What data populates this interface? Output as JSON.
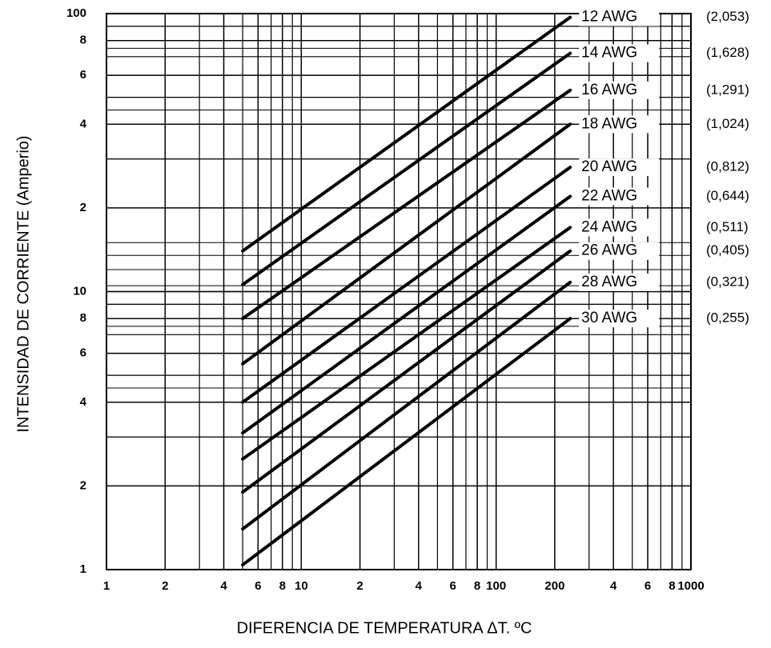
{
  "chart_data": {
    "type": "line",
    "x_label": "DIFERENCIA DE TEMPERATURA ΔT. ºC",
    "y_label": "INTENSIDAD DE CORRIENTE (Amperio)",
    "x_scale": "log",
    "y_scale": "log",
    "grid": true,
    "minor_grid": true,
    "color": "#000000",
    "xlim": [
      1,
      1000
    ],
    "ylim": [
      1,
      100
    ],
    "xticks": [
      1,
      2,
      4,
      6,
      8,
      10,
      {
        "value": 20,
        "label": "2"
      },
      {
        "value": 40,
        "label": "4"
      },
      {
        "value": 60,
        "label": "6"
      },
      {
        "value": 80,
        "label": "8"
      },
      100,
      200,
      {
        "value": 400,
        "label": "4"
      },
      {
        "value": 600,
        "label": "6"
      },
      {
        "value": 800,
        "label": "8"
      },
      1000
    ],
    "yticks": [
      1,
      2,
      4,
      6,
      8,
      10,
      {
        "value": 20,
        "label": "2"
      },
      {
        "value": 40,
        "label": "4"
      },
      {
        "value": 60,
        "label": "6"
      },
      {
        "value": 80,
        "label": "8"
      },
      100
    ],
    "x": [
      5,
      240
    ],
    "series": [
      {
        "name": "12 AWG",
        "annotation": "(2,053)",
        "values": [
          14,
          97
        ]
      },
      {
        "name": "14 AWG",
        "annotation": "(1,628)",
        "values": [
          10.6,
          72
        ]
      },
      {
        "name": "16 AWG",
        "annotation": "(1,291)",
        "values": [
          8,
          53
        ]
      },
      {
        "name": "18 AWG",
        "annotation": "(1,024)",
        "values": [
          5.5,
          40
        ]
      },
      {
        "name": "20 AWG",
        "annotation": "(0,812)",
        "values": [
          4,
          28
        ]
      },
      {
        "name": "22 AWG",
        "annotation": "(0,644)",
        "values": [
          3.1,
          22
        ]
      },
      {
        "name": "24 AWG",
        "annotation": "(0,511)",
        "values": [
          2.5,
          17
        ]
      },
      {
        "name": "26 AWG",
        "annotation": "(0,405)",
        "values": [
          1.9,
          14
        ]
      },
      {
        "name": "28 AWG",
        "annotation": "(0,321)",
        "values": [
          1.4,
          10.8
        ]
      },
      {
        "name": "30 AWG",
        "annotation": "(0,255)",
        "values": [
          1.04,
          8
        ]
      }
    ]
  }
}
